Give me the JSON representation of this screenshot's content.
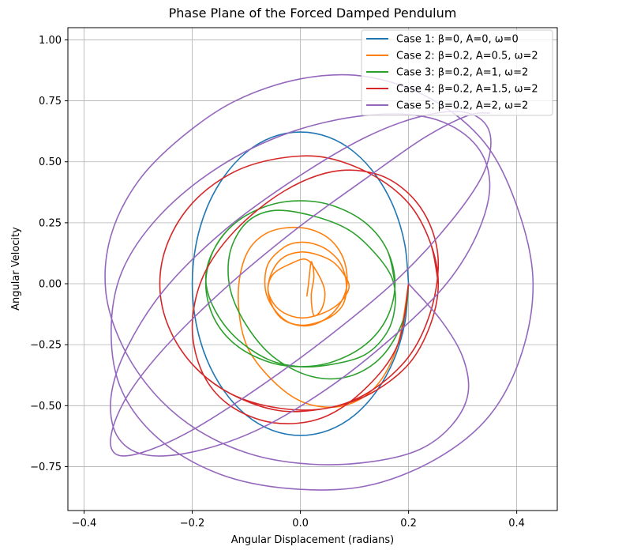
{
  "chart_data": {
    "type": "line",
    "title": "Phase Plane of the Forced Damped Pendulum",
    "xlabel": "Angular Displacement (radians)",
    "ylabel": "Angular Velocity",
    "xlim": [
      -0.43,
      0.475
    ],
    "ylim": [
      -0.93,
      1.05
    ],
    "xticks": [
      -0.4,
      -0.2,
      0.0,
      0.2,
      0.4
    ],
    "xtick_labels": [
      "−0.4",
      "−0.2",
      "0.0",
      "0.2",
      "0.4"
    ],
    "yticks": [
      -0.75,
      -0.5,
      -0.25,
      0.0,
      0.25,
      0.5,
      0.75,
      1.0
    ],
    "ytick_labels": [
      "−0.75",
      "−0.50",
      "−0.25",
      "0.00",
      "0.25",
      "0.50",
      "0.75",
      "1.00"
    ],
    "grid": true,
    "legend_position": "top-right",
    "series": [
      {
        "name": "Case 1: β=0, A=0, ω=0",
        "color": "#1f77b4",
        "x": [
          0.2,
          0.193,
          0.173,
          0.141,
          0.1,
          0.052,
          0.0,
          -0.052,
          -0.1,
          -0.141,
          -0.173,
          -0.193,
          -0.2,
          -0.193,
          -0.173,
          -0.141,
          -0.1,
          -0.052,
          0.0,
          0.052,
          0.1,
          0.141,
          0.173,
          0.193,
          0.2
        ],
        "y": [
          0.0,
          0.161,
          0.311,
          0.44,
          0.539,
          0.601,
          0.622,
          0.601,
          0.539,
          0.44,
          0.311,
          0.161,
          0.0,
          -0.161,
          -0.311,
          -0.44,
          -0.539,
          -0.601,
          -0.622,
          -0.601,
          -0.539,
          -0.44,
          -0.311,
          -0.161,
          0.0
        ]
      },
      {
        "name": "Case 2: β=0.2, A=0.5, ω=2",
        "color": "#ff7f0e",
        "x": [
          0.2,
          0.18,
          0.14,
          0.08,
          0.01,
          -0.05,
          -0.1,
          -0.115,
          -0.1,
          -0.06,
          0.0,
          0.05,
          0.08,
          0.085,
          0.06,
          0.02,
          -0.02,
          -0.05,
          -0.065,
          -0.06,
          -0.03,
          0.0,
          0.03,
          0.055,
          0.075,
          0.085,
          0.08,
          0.06,
          0.03,
          0.0,
          -0.03,
          -0.05,
          -0.06,
          -0.05,
          -0.03,
          0.0,
          0.03,
          0.06,
          0.08,
          0.09,
          0.08,
          0.06,
          0.03,
          0.0,
          -0.03,
          -0.05,
          -0.06,
          -0.05,
          -0.02,
          0.01,
          0.03,
          0.045,
          0.04,
          0.025,
          0.02,
          0.025,
          0.02,
          0.015,
          0.012
        ],
        "y": [
          0.0,
          -0.25,
          -0.42,
          -0.5,
          -0.49,
          -0.4,
          -0.25,
          -0.05,
          0.12,
          0.21,
          0.23,
          0.19,
          0.1,
          -0.02,
          -0.12,
          -0.17,
          -0.16,
          -0.1,
          -0.02,
          0.08,
          0.15,
          0.17,
          0.16,
          0.13,
          0.08,
          0.0,
          -0.08,
          -0.13,
          -0.16,
          -0.17,
          -0.15,
          -0.1,
          -0.02,
          0.06,
          0.11,
          0.13,
          0.12,
          0.09,
          0.04,
          -0.01,
          -0.06,
          -0.1,
          -0.13,
          -0.14,
          -0.12,
          -0.08,
          -0.02,
          0.04,
          0.08,
          0.1,
          0.05,
          -0.03,
          -0.1,
          -0.13,
          -0.05,
          0.03,
          0.09,
          0.0,
          -0.05
        ]
      },
      {
        "name": "Case 3: β=0.2, A=1, ω=2",
        "color": "#2ca02c",
        "x": [
          0.2,
          0.19,
          0.15,
          0.09,
          0.02,
          -0.05,
          -0.1,
          -0.13,
          -0.13,
          -0.1,
          -0.05,
          0.02,
          0.09,
          0.14,
          0.17,
          0.175,
          0.16,
          0.12,
          0.06,
          0.0,
          -0.06,
          -0.12,
          -0.16,
          -0.175,
          -0.16,
          -0.12,
          -0.06,
          0.0,
          0.06,
          0.12,
          0.16,
          0.175,
          0.16,
          0.12,
          0.06,
          0.0,
          -0.06,
          -0.12,
          -0.16,
          -0.175,
          -0.16,
          -0.12,
          -0.06,
          0.0,
          0.06,
          0.12,
          0.16,
          0.175
        ],
        "y": [
          0.0,
          -0.15,
          -0.3,
          -0.38,
          -0.38,
          -0.3,
          -0.17,
          -0.02,
          0.13,
          0.25,
          0.3,
          0.28,
          0.22,
          0.12,
          0.02,
          -0.09,
          -0.2,
          -0.29,
          -0.33,
          -0.34,
          -0.31,
          -0.22,
          -0.1,
          0.02,
          0.14,
          0.25,
          0.32,
          0.34,
          0.32,
          0.25,
          0.14,
          0.0,
          -0.14,
          -0.25,
          -0.32,
          -0.34,
          -0.32,
          -0.25,
          -0.14,
          0.0,
          0.14,
          0.25,
          0.32,
          0.34,
          0.32,
          0.25,
          0.14,
          0.0
        ]
      },
      {
        "name": "Case 4: β=0.2, A=1.5, ω=2",
        "color": "#d62728",
        "x": [
          0.2,
          0.18,
          0.12,
          0.04,
          -0.05,
          -0.13,
          -0.18,
          -0.2,
          -0.18,
          -0.12,
          -0.03,
          0.06,
          0.14,
          0.2,
          0.24,
          0.255,
          0.24,
          0.2,
          0.13,
          0.05,
          -0.04,
          -0.13,
          -0.2,
          -0.245,
          -0.26,
          -0.245,
          -0.2,
          -0.13,
          -0.05,
          0.04,
          0.13,
          0.2,
          0.24,
          0.255,
          0.24,
          0.2,
          0.13,
          0.05,
          -0.04,
          -0.13,
          -0.2,
          -0.245,
          -0.26,
          -0.245,
          -0.2,
          -0.13,
          -0.05,
          0.04,
          0.13,
          0.2,
          0.24,
          0.255
        ],
        "y": [
          0.0,
          -0.25,
          -0.43,
          -0.55,
          -0.57,
          -0.5,
          -0.37,
          -0.18,
          0.03,
          0.22,
          0.38,
          0.46,
          0.45,
          0.37,
          0.24,
          0.08,
          -0.12,
          -0.3,
          -0.44,
          -0.51,
          -0.51,
          -0.45,
          -0.33,
          -0.17,
          0.0,
          0.17,
          0.33,
          0.45,
          0.51,
          0.52,
          0.45,
          0.33,
          0.17,
          0.0,
          -0.17,
          -0.33,
          -0.45,
          -0.51,
          -0.52,
          -0.45,
          -0.33,
          -0.17,
          0.0,
          0.17,
          0.33,
          0.45,
          0.51,
          0.52,
          0.45,
          0.33,
          0.17,
          0.0
        ]
      },
      {
        "name": "Case 5: β=0.2, A=2, ω=2",
        "color": "#9467bd",
        "x": [
          0.2,
          0.26,
          0.3,
          0.31,
          0.28,
          0.22,
          0.13,
          0.02,
          -0.09,
          -0.19,
          -0.27,
          -0.33,
          -0.36,
          -0.35,
          -0.3,
          -0.22,
          -0.12,
          0.0,
          0.12,
          0.24,
          0.34,
          0.4,
          0.43,
          0.41,
          0.35,
          0.25,
          0.12,
          -0.02,
          -0.15,
          -0.26,
          -0.33,
          -0.35,
          -0.33,
          -0.26,
          -0.15,
          -0.02,
          0.12,
          0.24,
          0.32,
          0.35,
          0.33,
          0.27,
          0.17,
          0.05,
          -0.08,
          -0.2,
          -0.29,
          -0.34,
          -0.35,
          -0.32,
          -0.25,
          -0.14,
          -0.01,
          0.12,
          0.23,
          0.31,
          0.35,
          0.34,
          0.28,
          0.18,
          0.05,
          -0.08,
          -0.2,
          -0.29,
          -0.34,
          -0.35,
          -0.32,
          -0.25,
          -0.14,
          -0.01,
          0.12,
          0.23,
          0.31,
          0.35
        ],
        "y": [
          0.0,
          -0.15,
          -0.3,
          -0.45,
          -0.58,
          -0.68,
          -0.73,
          -0.74,
          -0.7,
          -0.6,
          -0.45,
          -0.25,
          -0.03,
          0.2,
          0.42,
          0.6,
          0.75,
          0.84,
          0.85,
          0.76,
          0.58,
          0.32,
          0.02,
          -0.28,
          -0.54,
          -0.72,
          -0.83,
          -0.84,
          -0.78,
          -0.64,
          -0.44,
          -0.2,
          0.05,
          0.28,
          0.48,
          0.62,
          0.69,
          0.68,
          0.58,
          0.42,
          0.22,
          0.0,
          -0.22,
          -0.43,
          -0.6,
          -0.69,
          -0.7,
          -0.62,
          -0.46,
          -0.26,
          -0.02,
          0.22,
          0.43,
          0.6,
          0.69,
          0.7,
          0.62,
          0.46,
          0.26,
          0.02,
          -0.22,
          -0.43,
          -0.6,
          -0.69,
          -0.7,
          -0.62,
          -0.46,
          -0.26,
          -0.02,
          0.22,
          0.43,
          0.6,
          0.69,
          0.7
        ]
      }
    ]
  }
}
